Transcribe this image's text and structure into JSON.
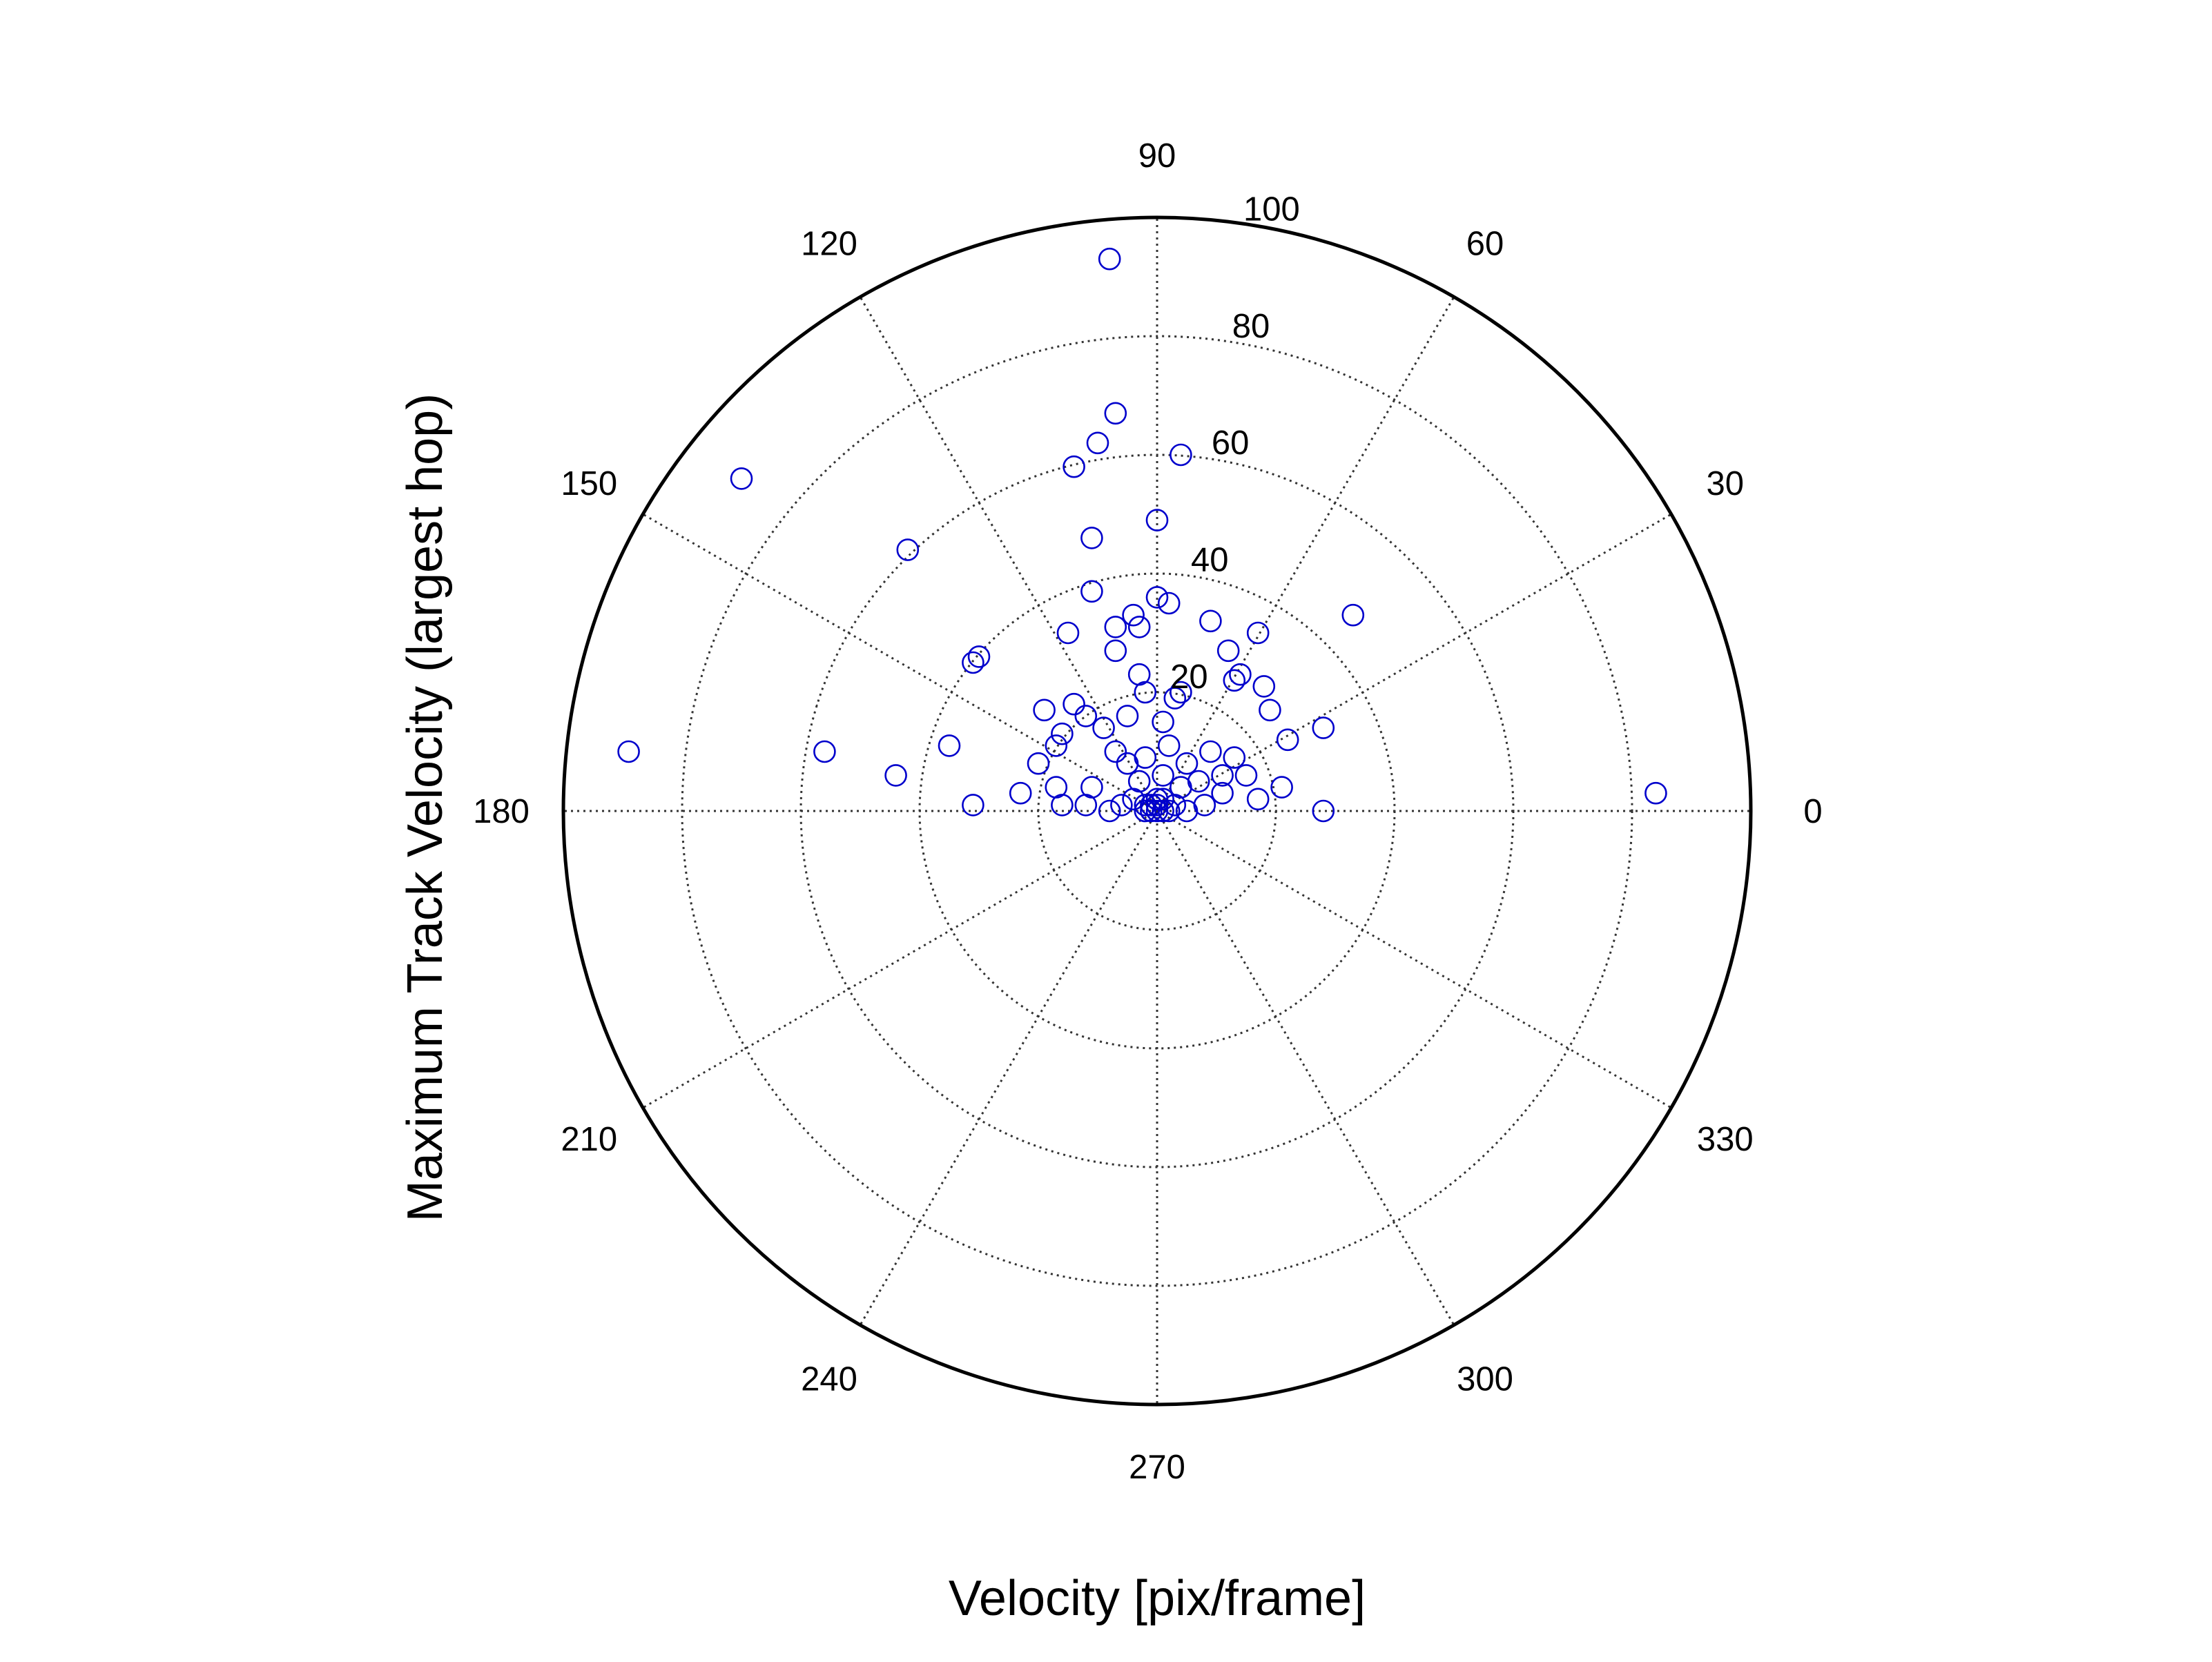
{
  "chart_data": {
    "type": "scatter",
    "coordinate_system": "polar",
    "xlabel": "Velocity [pix/frame]",
    "ylabel": "Maximum Track Velocity (largest hop)",
    "r_max": 100,
    "r_ticks": [
      20,
      40,
      60,
      80,
      100
    ],
    "r_gridlines": [
      20,
      40,
      60,
      80,
      100
    ],
    "theta_ticks": [
      0,
      30,
      60,
      90,
      120,
      150,
      180,
      210,
      240,
      270,
      300,
      330
    ],
    "theta_unit": "degrees",
    "grid": true,
    "marker": "open-circle",
    "marker_color": "#0000cc",
    "points": [
      {
        "x": -8,
        "y": 93
      },
      {
        "x": -70,
        "y": 56
      },
      {
        "x": 84,
        "y": 3
      },
      {
        "x": -89,
        "y": 10
      },
      {
        "x": 33,
        "y": 33
      },
      {
        "x": -7,
        "y": 67
      },
      {
        "x": -10,
        "y": 62
      },
      {
        "x": -14,
        "y": 58
      },
      {
        "x": 4,
        "y": 60
      },
      {
        "x": 0,
        "y": 49
      },
      {
        "x": -11,
        "y": 46
      },
      {
        "x": -42,
        "y": 44
      },
      {
        "x": -11,
        "y": 37
      },
      {
        "x": 0,
        "y": 36
      },
      {
        "x": -4,
        "y": 33
      },
      {
        "x": -3,
        "y": 31
      },
      {
        "x": 2,
        "y": 35
      },
      {
        "x": 9,
        "y": 32
      },
      {
        "x": 17,
        "y": 30
      },
      {
        "x": -15,
        "y": 30
      },
      {
        "x": -7,
        "y": 31
      },
      {
        "x": -30,
        "y": 26
      },
      {
        "x": -31,
        "y": 25
      },
      {
        "x": -7,
        "y": 27
      },
      {
        "x": -3,
        "y": 23
      },
      {
        "x": 4,
        "y": 20
      },
      {
        "x": 12,
        "y": 27
      },
      {
        "x": 14,
        "y": 23
      },
      {
        "x": 13,
        "y": 22
      },
      {
        "x": 18,
        "y": 21
      },
      {
        "x": 19,
        "y": 17
      },
      {
        "x": 28,
        "y": 14
      },
      {
        "x": 22,
        "y": 12
      },
      {
        "x": 9,
        "y": 10
      },
      {
        "x": 13,
        "y": 9
      },
      {
        "x": 11,
        "y": 6
      },
      {
        "x": 15,
        "y": 6
      },
      {
        "x": 21,
        "y": 4
      },
      {
        "x": 28,
        "y": 0
      },
      {
        "x": 17,
        "y": 2
      },
      {
        "x": 11,
        "y": 3
      },
      {
        "x": -14,
        "y": 18
      },
      {
        "x": -12,
        "y": 16
      },
      {
        "x": -9,
        "y": 14
      },
      {
        "x": -16,
        "y": 13
      },
      {
        "x": -19,
        "y": 17
      },
      {
        "x": -56,
        "y": 10
      },
      {
        "x": -35,
        "y": 11
      },
      {
        "x": -44,
        "y": 6
      },
      {
        "x": -31,
        "y": 1
      },
      {
        "x": -23,
        "y": 3
      },
      {
        "x": -20,
        "y": 8
      },
      {
        "x": -17,
        "y": 11
      },
      {
        "x": -2,
        "y": 20
      },
      {
        "x": 3,
        "y": 19
      },
      {
        "x": -5,
        "y": 16
      },
      {
        "x": 1,
        "y": 15
      },
      {
        "x": -7,
        "y": 10
      },
      {
        "x": -5,
        "y": 8
      },
      {
        "x": -2,
        "y": 9
      },
      {
        "x": 2,
        "y": 11
      },
      {
        "x": 5,
        "y": 8
      },
      {
        "x": 7,
        "y": 5
      },
      {
        "x": -17,
        "y": 4
      },
      {
        "x": -11,
        "y": 4
      },
      {
        "x": -12,
        "y": 1
      },
      {
        "x": -16,
        "y": 1
      },
      {
        "x": 4,
        "y": 4
      },
      {
        "x": -3,
        "y": 5
      },
      {
        "x": 1,
        "y": 6
      },
      {
        "x": -4,
        "y": 2
      },
      {
        "x": 1,
        "y": 2
      },
      {
        "x": 3,
        "y": 1
      },
      {
        "x": -2,
        "y": 1
      },
      {
        "x": 0,
        "y": 0
      },
      {
        "x": -1,
        "y": 0
      },
      {
        "x": 1,
        "y": 0
      },
      {
        "x": 0,
        "y": 1
      },
      {
        "x": -1,
        "y": 1
      },
      {
        "x": 2,
        "y": 0
      },
      {
        "x": -2,
        "y": 0
      },
      {
        "x": 0,
        "y": 2
      },
      {
        "x": 5,
        "y": 0
      },
      {
        "x": 8,
        "y": 1
      },
      {
        "x": -6,
        "y": 1
      },
      {
        "x": -8,
        "y": 0
      }
    ]
  }
}
